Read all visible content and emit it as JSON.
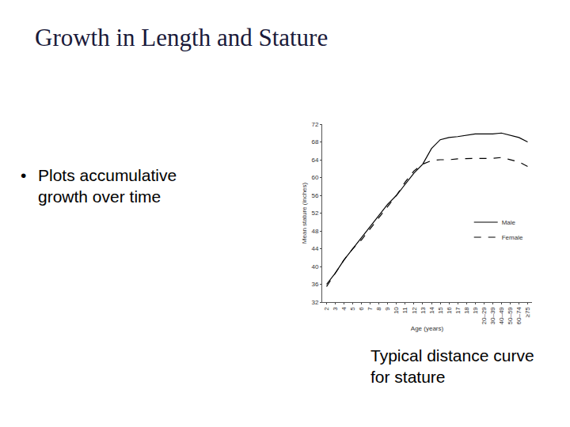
{
  "slide": {
    "title": "Growth in Length and Stature",
    "bullets": [
      "Plots accumulative growth over time"
    ],
    "caption": "Typical distance curve for stature"
  },
  "chart_data": {
    "type": "line",
    "x_label": "Age (years)",
    "y_label": "Mean stature (inches)",
    "categories": [
      "2",
      "3",
      "4",
      "5",
      "6",
      "7",
      "8",
      "9",
      "10",
      "11",
      "12",
      "13",
      "14",
      "15",
      "16",
      "17",
      "18",
      "19",
      "20–29",
      "30–39",
      "40–49",
      "50–59",
      "60–74",
      "≥75"
    ],
    "series": [
      {
        "name": "Male",
        "color": "#000000",
        "line_style": "solid",
        "values": [
          36,
          38.5,
          41.5,
          44,
          46.5,
          49,
          51.5,
          54,
          56,
          58.5,
          61,
          63,
          66.5,
          68.5,
          69,
          69.2,
          69.5,
          69.8,
          69.8,
          69.8,
          70,
          69.5,
          69,
          68
        ]
      },
      {
        "name": "Female",
        "color": "#000000",
        "line_style": "dash",
        "values": [
          35.5,
          38.5,
          41.5,
          44,
          46,
          48.5,
          51,
          53.5,
          56,
          59,
          61.5,
          63,
          63.8,
          64,
          64,
          64.2,
          64.3,
          64.3,
          64.3,
          64.3,
          64.5,
          64,
          63.5,
          62.5
        ]
      }
    ],
    "ylim": [
      32,
      72
    ],
    "yticks": [
      32,
      36,
      40,
      44,
      48,
      52,
      56,
      60,
      64,
      68,
      72
    ],
    "grid": false,
    "legend": "lower right"
  }
}
